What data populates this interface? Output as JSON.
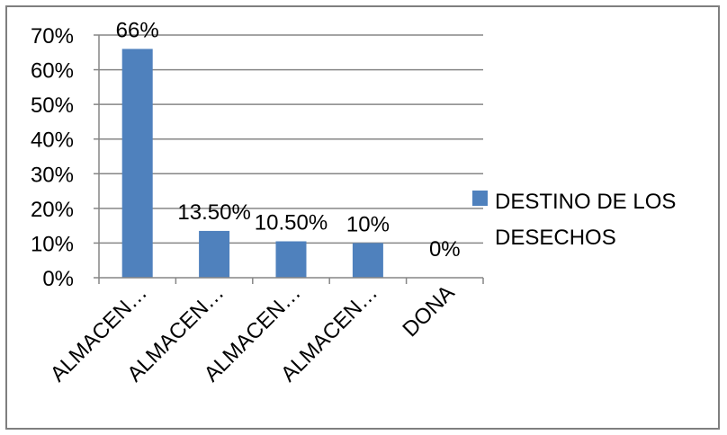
{
  "chart_data": {
    "type": "bar",
    "categories": [
      "ALMACEN…",
      "ALMACEN…",
      "ALMACEN…",
      "ALMACEN…",
      "DONA"
    ],
    "series": [
      {
        "name": "DESTINO DE LOS DESECHOS",
        "values": [
          66,
          13.5,
          10.5,
          10,
          0
        ],
        "data_labels": [
          "66%",
          "13.50%",
          "10.50%",
          "10%",
          "0%"
        ]
      }
    ],
    "title": "",
    "xlabel": "",
    "ylabel": "",
    "ylim": [
      0,
      70
    ],
    "yticks": [
      "0%",
      "10%",
      "20%",
      "30%",
      "40%",
      "50%",
      "60%",
      "70%"
    ],
    "grid": true,
    "legend": {
      "position": "right",
      "lines": [
        "DESTINO DE LOS",
        "DESECHOS"
      ]
    },
    "colors": {
      "bar": "#4f81bd",
      "grid": "#868686",
      "axis": "#868686"
    }
  }
}
